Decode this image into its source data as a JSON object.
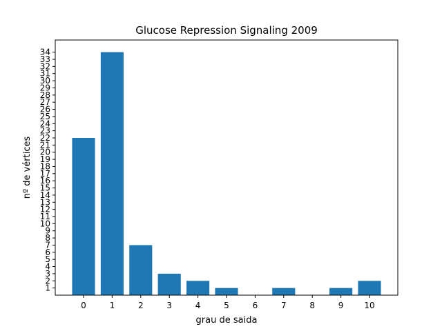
{
  "chart_data": {
    "type": "bar",
    "title": "Glucose Repression Signaling 2009",
    "xlabel": "grau de saida",
    "ylabel": "nº de vértices",
    "categories": [
      "0",
      "1",
      "2",
      "3",
      "4",
      "5",
      "6",
      "7",
      "8",
      "9",
      "10"
    ],
    "values": [
      22,
      34,
      7,
      3,
      2,
      1,
      0,
      1,
      0,
      1,
      2
    ],
    "yticks": [
      1,
      2,
      3,
      4,
      5,
      6,
      7,
      8,
      9,
      10,
      11,
      12,
      13,
      14,
      15,
      16,
      17,
      18,
      19,
      20,
      21,
      22,
      23,
      24,
      25,
      26,
      27,
      28,
      29,
      30,
      31,
      32,
      33,
      34
    ],
    "ylim": [
      0,
      35.7
    ],
    "xlim": [
      -0.99,
      10.99
    ],
    "bar_color": "#1f77b4",
    "grid": false,
    "legend": "none"
  }
}
